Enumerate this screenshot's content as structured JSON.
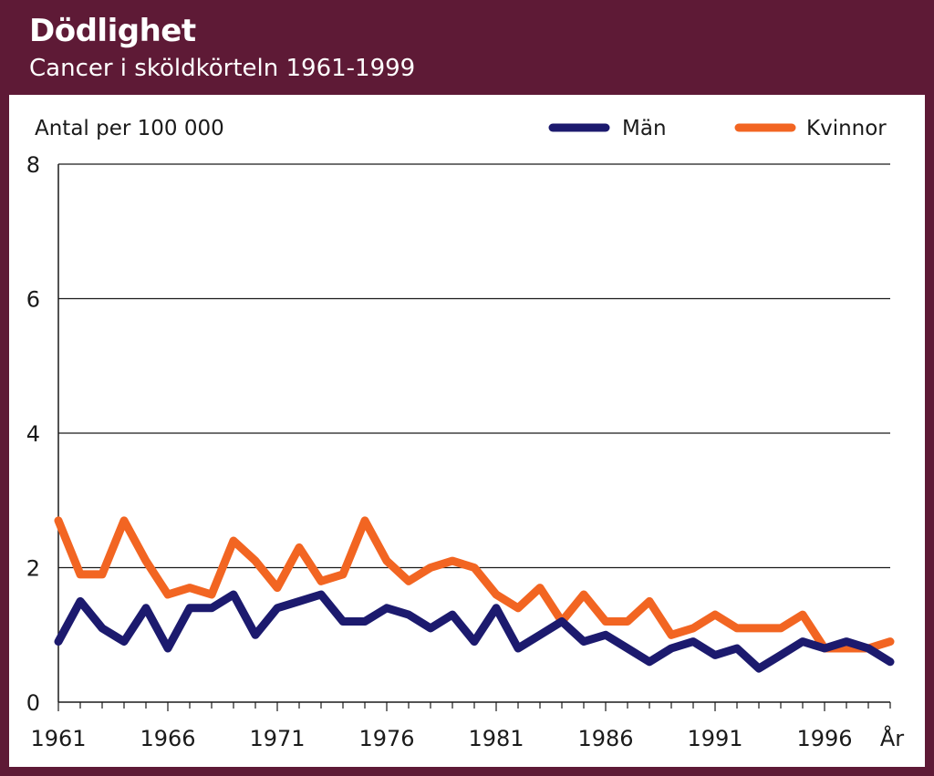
{
  "header": {
    "title": "Dödlighet",
    "subtitle": "Cancer i sköldkörteln 1961-1999"
  },
  "chart_data": {
    "type": "line",
    "title": "Dödlighet",
    "subtitle": "Cancer i sköldkörteln 1961-1999",
    "ylabel": "Antal per 100 000",
    "xlabel": "År",
    "xlim": [
      1961,
      1999
    ],
    "ylim": [
      0,
      8
    ],
    "yticks": [
      0,
      2,
      4,
      6,
      8
    ],
    "xticks": [
      1961,
      1966,
      1971,
      1976,
      1981,
      1986,
      1991,
      1996
    ],
    "grid": true,
    "legend_position": "top-right",
    "x": [
      1961,
      1962,
      1963,
      1964,
      1965,
      1966,
      1967,
      1968,
      1969,
      1970,
      1971,
      1972,
      1973,
      1974,
      1975,
      1976,
      1977,
      1978,
      1979,
      1980,
      1981,
      1982,
      1983,
      1984,
      1985,
      1986,
      1987,
      1988,
      1989,
      1990,
      1991,
      1992,
      1993,
      1994,
      1995,
      1996,
      1997,
      1998,
      1999
    ],
    "series": [
      {
        "name": "Män",
        "color": "#1c1a6e",
        "values": [
          0.9,
          1.5,
          1.1,
          0.9,
          1.4,
          0.8,
          1.4,
          1.4,
          1.6,
          1.0,
          1.4,
          1.5,
          1.6,
          1.2,
          1.2,
          1.4,
          1.3,
          1.1,
          1.3,
          0.9,
          1.4,
          0.8,
          1.0,
          1.2,
          0.9,
          1.0,
          0.8,
          0.6,
          0.8,
          0.9,
          0.7,
          0.8,
          0.5,
          0.7,
          0.9,
          0.8,
          0.9,
          0.8,
          0.6
        ]
      },
      {
        "name": "Kvinnor",
        "color": "#f26522",
        "values": [
          2.7,
          1.9,
          1.9,
          2.7,
          2.1,
          1.6,
          1.7,
          1.6,
          2.4,
          2.1,
          1.7,
          2.3,
          1.8,
          1.9,
          2.7,
          2.1,
          1.8,
          2.0,
          2.1,
          2.0,
          1.6,
          1.4,
          1.7,
          1.2,
          1.6,
          1.2,
          1.2,
          1.5,
          1.0,
          1.1,
          1.3,
          1.1,
          1.1,
          1.1,
          1.3,
          0.8,
          0.8,
          0.8,
          0.9
        ]
      }
    ]
  }
}
